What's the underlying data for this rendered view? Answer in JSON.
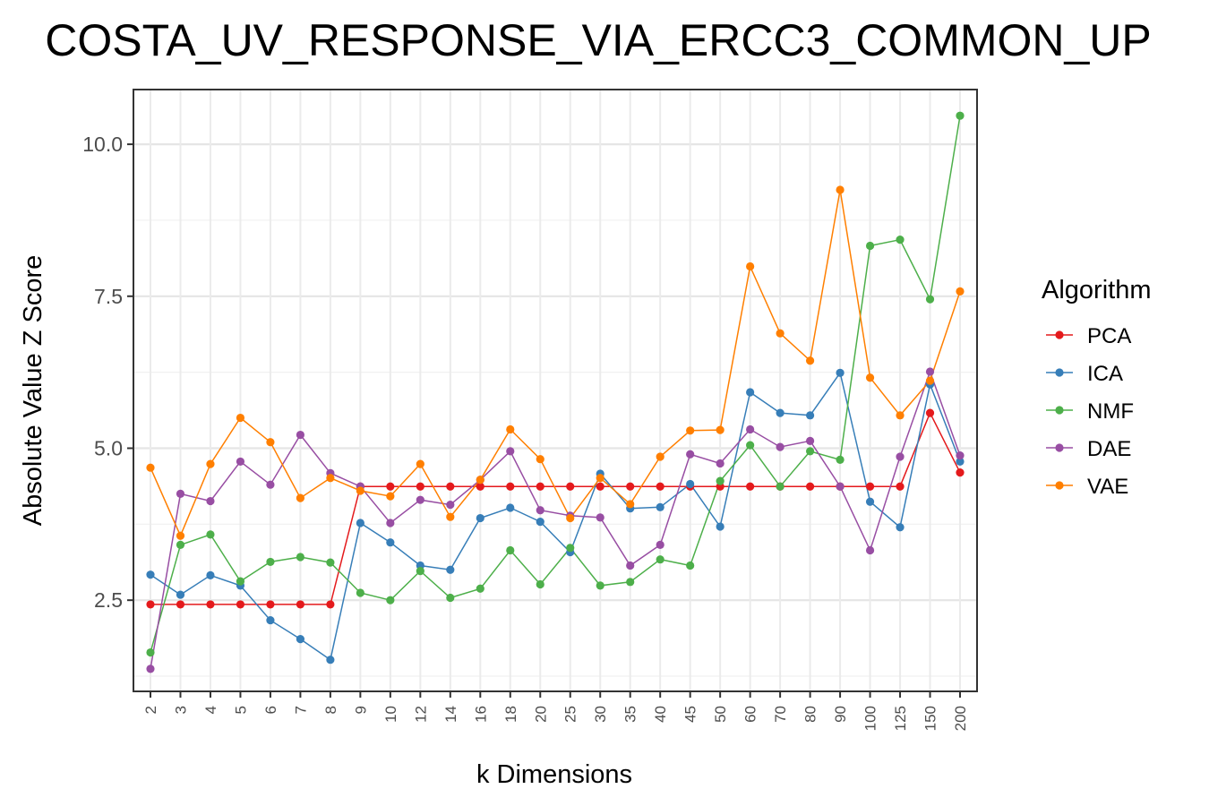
{
  "chart_data": {
    "type": "line",
    "title": "COSTA_UV_RESPONSE_VIA_ERCC3_COMMON_UP",
    "xlabel": "k Dimensions",
    "ylabel": "Absolute Value Z Score",
    "categories": [
      "2",
      "3",
      "4",
      "5",
      "6",
      "7",
      "8",
      "9",
      "10",
      "12",
      "14",
      "16",
      "18",
      "20",
      "25",
      "30",
      "35",
      "40",
      "45",
      "50",
      "60",
      "70",
      "80",
      "90",
      "100",
      "125",
      "150",
      "200"
    ],
    "ylim": [
      1.0,
      10.9
    ],
    "yticks": [
      2.5,
      5.0,
      7.5,
      10.0
    ],
    "ytick_labels": [
      "2.5",
      "5.0",
      "7.5",
      "10.0"
    ],
    "grid": true,
    "legend": {
      "title": "Algorithm",
      "position": "right"
    },
    "series": [
      {
        "name": "PCA",
        "color": "#e41a1c",
        "values": [
          2.43,
          2.43,
          2.43,
          2.43,
          2.43,
          2.43,
          2.43,
          4.37,
          4.37,
          4.37,
          4.37,
          4.37,
          4.37,
          4.37,
          4.37,
          4.37,
          4.37,
          4.37,
          4.37,
          4.37,
          4.37,
          4.37,
          4.37,
          4.37,
          4.37,
          4.37,
          5.58,
          4.6
        ]
      },
      {
        "name": "ICA",
        "color": "#377eb8",
        "values": [
          2.92,
          2.59,
          2.91,
          2.74,
          2.17,
          1.86,
          1.52,
          3.77,
          3.45,
          3.07,
          3.0,
          3.85,
          4.02,
          3.79,
          3.29,
          4.58,
          4.01,
          4.03,
          4.41,
          3.71,
          5.92,
          5.58,
          5.54,
          6.24,
          4.12,
          3.7,
          6.05,
          4.78
        ]
      },
      {
        "name": "NMF",
        "color": "#4daf4a",
        "values": [
          1.64,
          3.41,
          3.58,
          2.81,
          3.13,
          3.21,
          3.12,
          2.62,
          2.5,
          2.98,
          2.54,
          2.69,
          3.32,
          2.76,
          3.36,
          2.74,
          2.8,
          3.17,
          3.07,
          4.46,
          5.05,
          4.37,
          4.95,
          4.81,
          8.33,
          8.43,
          7.45,
          10.47
        ]
      },
      {
        "name": "DAE",
        "color": "#984ea3",
        "values": [
          1.37,
          4.25,
          4.13,
          4.78,
          4.4,
          5.22,
          4.59,
          4.37,
          3.77,
          4.15,
          4.07,
          4.48,
          4.95,
          3.98,
          3.89,
          3.86,
          3.07,
          3.41,
          4.9,
          4.75,
          5.31,
          5.02,
          5.12,
          4.37,
          3.32,
          4.86,
          6.26,
          4.88
        ]
      },
      {
        "name": "VAE",
        "color": "#ff7f00",
        "values": [
          4.68,
          3.56,
          4.74,
          5.5,
          5.1,
          4.18,
          4.51,
          4.3,
          4.21,
          4.74,
          3.87,
          4.48,
          5.31,
          4.82,
          3.85,
          4.51,
          4.08,
          4.86,
          5.29,
          5.3,
          7.99,
          6.89,
          6.44,
          9.25,
          6.16,
          5.54,
          6.11,
          7.58
        ]
      }
    ]
  }
}
